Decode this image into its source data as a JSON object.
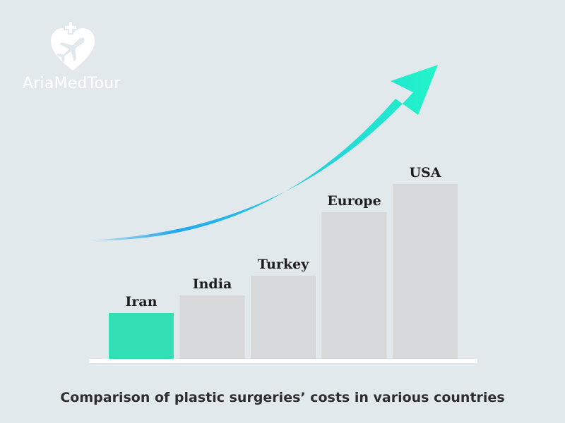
{
  "brand": {
    "name": "AriaMedTour",
    "icon": "heart-airplane-plus-icon"
  },
  "chart_data": {
    "type": "bar",
    "categories": [
      "Iran",
      "India",
      "Turkey",
      "Europe",
      "USA"
    ],
    "values": [
      65,
      90,
      118,
      208,
      248
    ],
    "ylim": [
      0,
      300
    ],
    "title": "",
    "xlabel": "",
    "ylabel": "",
    "grid": false,
    "legend": "none",
    "annotation": "upward-trend-arrow",
    "colors": {
      "highlight": "#33e0b5",
      "bar": "#d7d8da",
      "baseline": "#ffffff",
      "arrow_start": "#22a8f0",
      "arrow_end": "#22f5c8"
    },
    "highlight_category": "Iran"
  },
  "caption": "Comparison of plastic surgeries’ costs in various countries"
}
